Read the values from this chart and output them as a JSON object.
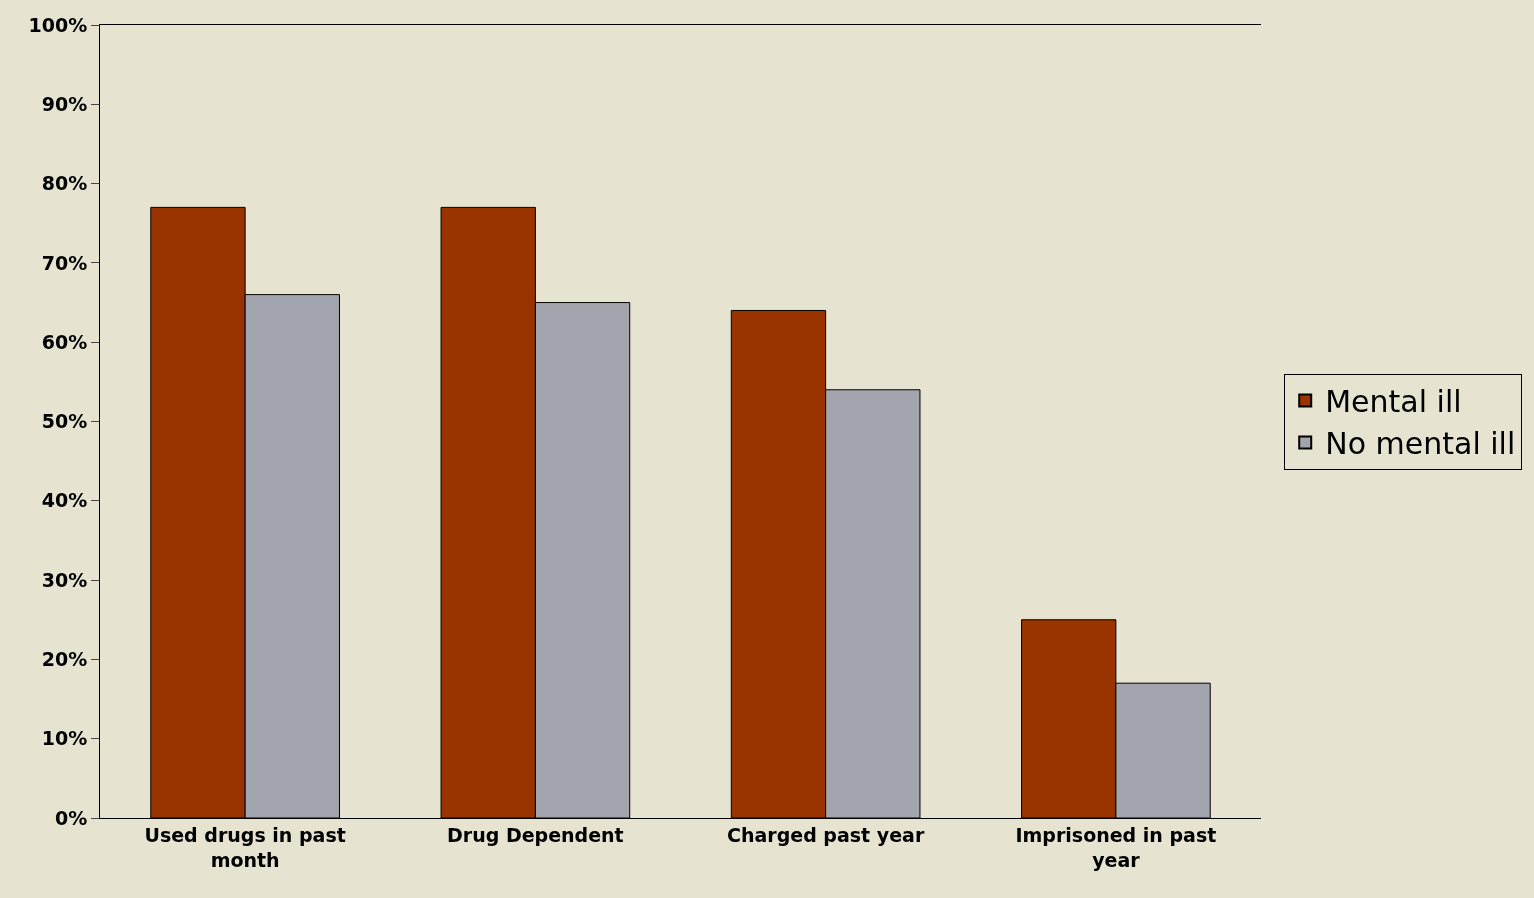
{
  "chart_data": {
    "type": "bar",
    "categories": [
      "Used drugs in past month",
      "Drug Dependent",
      "Charged past year",
      "Imprisoned in past year"
    ],
    "series": [
      {
        "name": "Mental ill",
        "color": "#993300",
        "values": [
          77,
          77,
          64,
          25
        ]
      },
      {
        "name": "No mental ill",
        "color": "#a3a5ae",
        "values": [
          66,
          65,
          54,
          17
        ]
      }
    ],
    "ylim": [
      0,
      100
    ],
    "yticks": [
      {
        "value": 0,
        "label": "0%"
      },
      {
        "value": 10,
        "label": "10%"
      },
      {
        "value": 20,
        "label": "20%"
      },
      {
        "value": 30,
        "label": "30%"
      },
      {
        "value": 40,
        "label": "40%"
      },
      {
        "value": 50,
        "label": "50%"
      },
      {
        "value": 60,
        "label": "60%"
      },
      {
        "value": 70,
        "label": "70%"
      },
      {
        "value": 80,
        "label": "80%"
      },
      {
        "value": 90,
        "label": "90%"
      },
      {
        "value": 100,
        "label": "100%"
      }
    ],
    "grid": false,
    "legend": "right"
  }
}
